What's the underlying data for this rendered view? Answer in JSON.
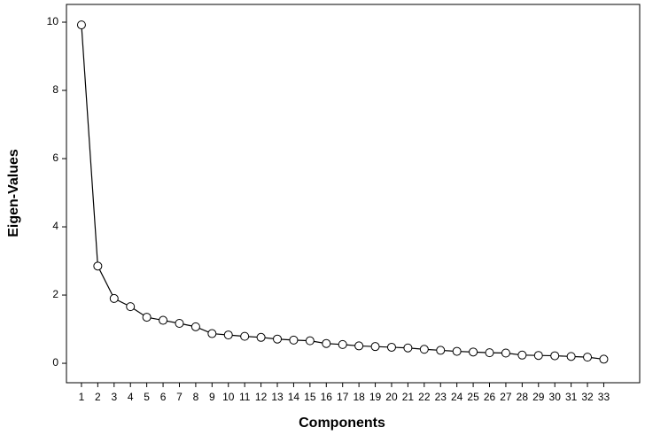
{
  "chart_data": {
    "type": "line",
    "x_label": "Components",
    "y_label": "Eigen-Values",
    "x": [
      1,
      2,
      3,
      4,
      5,
      6,
      7,
      8,
      9,
      10,
      11,
      12,
      13,
      14,
      15,
      16,
      17,
      18,
      19,
      20,
      21,
      22,
      23,
      24,
      25,
      26,
      27,
      28,
      29,
      30,
      31,
      32,
      33
    ],
    "values": [
      9.92,
      2.85,
      1.9,
      1.66,
      1.35,
      1.26,
      1.17,
      1.07,
      0.87,
      0.83,
      0.79,
      0.76,
      0.71,
      0.68,
      0.66,
      0.58,
      0.55,
      0.51,
      0.49,
      0.47,
      0.45,
      0.41,
      0.38,
      0.35,
      0.33,
      0.31,
      0.3,
      0.24,
      0.23,
      0.22,
      0.2,
      0.18,
      0.12
    ],
    "color": "#000000",
    "xlim": [
      0.08,
      35.2
    ],
    "xticks": [
      1,
      2,
      3,
      4,
      5,
      6,
      7,
      8,
      9,
      10,
      11,
      12,
      13,
      14,
      15,
      16,
      17,
      18,
      19,
      20,
      21,
      22,
      23,
      24,
      25,
      26,
      27,
      28,
      29,
      30,
      31,
      32,
      33
    ],
    "ylim": [
      -0.57,
      10.52
    ],
    "yticks": [
      0,
      2,
      4,
      6,
      8,
      10
    ]
  }
}
